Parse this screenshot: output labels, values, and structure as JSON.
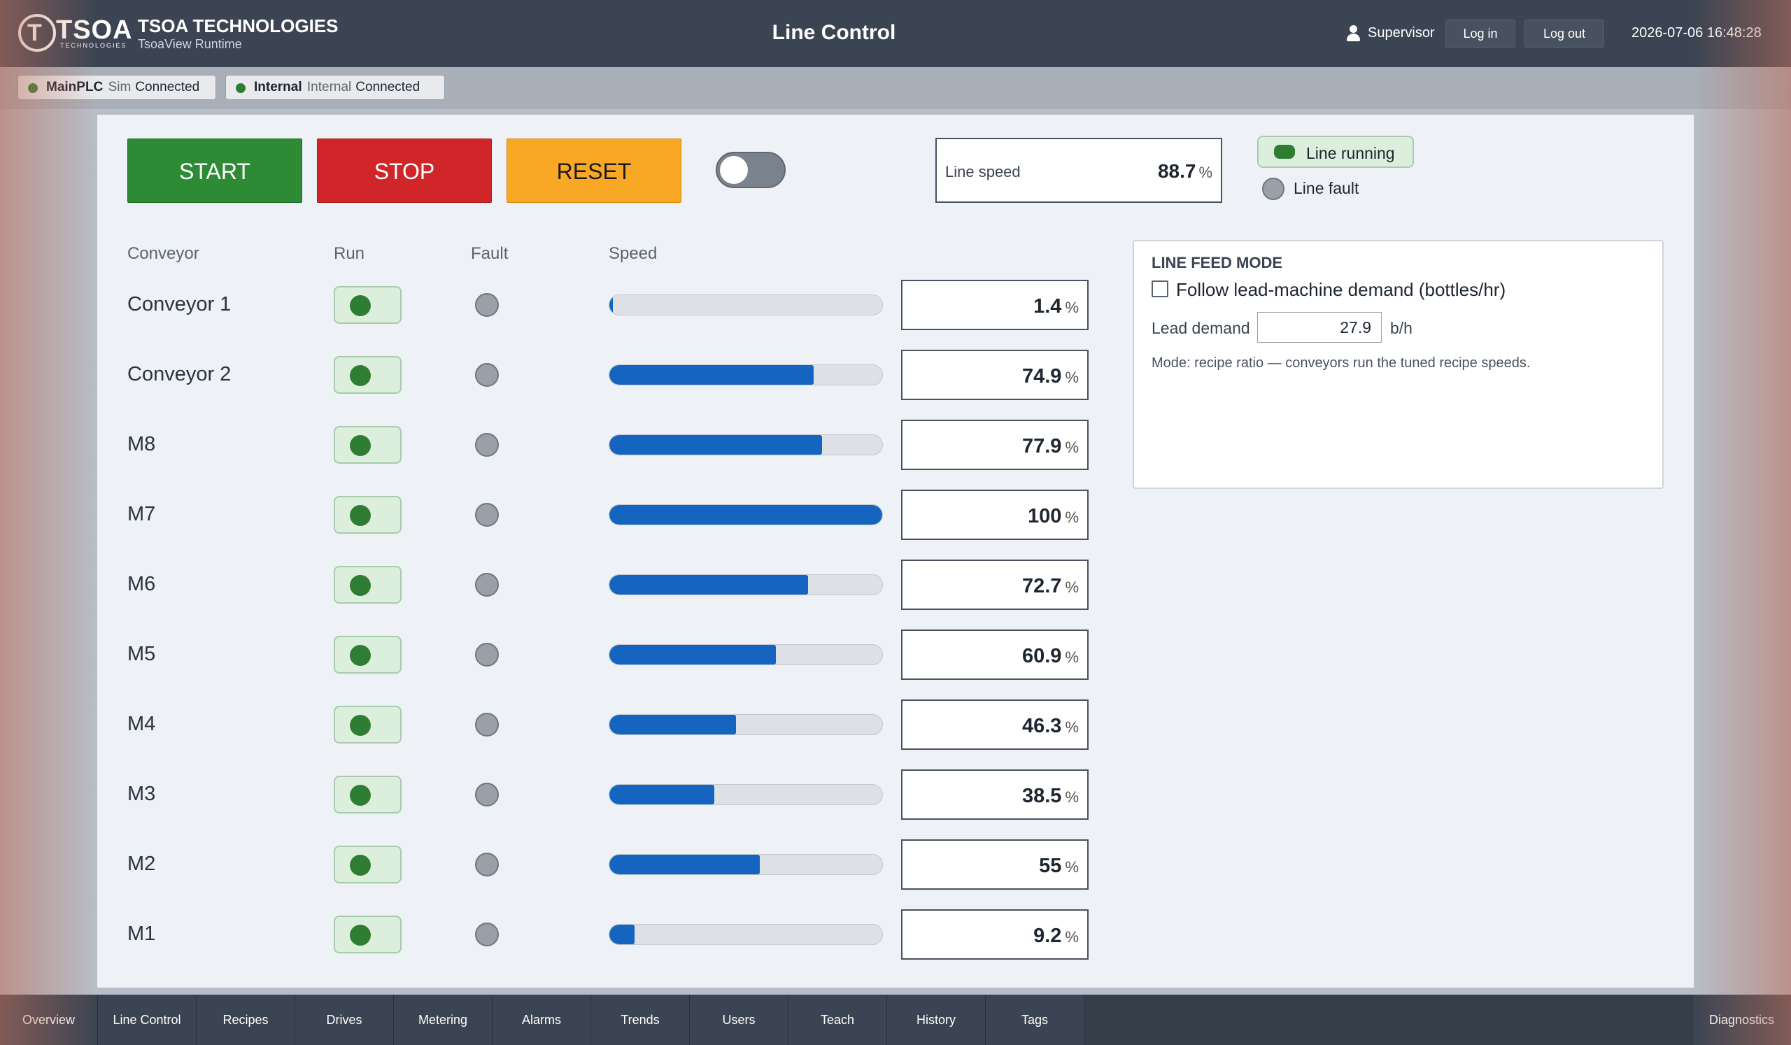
{
  "header": {
    "logo_letter": "T",
    "logo_word": "TSOA",
    "logo_sub": "TECHNOLOGIES",
    "brand_title": "TSOA TECHNOLOGIES",
    "brand_sub": "TsoaView Runtime",
    "page_title": "Line Control",
    "user_name": "Supervisor",
    "login_label": "Log in",
    "logout_label": "Log out",
    "datetime": "2026-07-06  16:48:28"
  },
  "connections": [
    {
      "name": "MainPLC",
      "type": "Sim",
      "status": "Connected",
      "color": "#2e7d32"
    },
    {
      "name": "Internal",
      "type": "Internal",
      "status": "Connected",
      "color": "#2e7d32"
    }
  ],
  "controls": {
    "start_label": "START",
    "stop_label": "STOP",
    "reset_label": "RESET",
    "toggle_on": false,
    "line_speed_label": "Line speed",
    "line_speed_value": "88.7",
    "line_speed_unit": "%",
    "line_running_label": "Line running",
    "line_fault_label": "Line fault"
  },
  "table": {
    "headers": {
      "conveyor": "Conveyor",
      "run": "Run",
      "fault": "Fault",
      "speed": "Speed"
    },
    "unit": "%",
    "rows": [
      {
        "name": "Conveyor 1",
        "run": true,
        "fault": false,
        "value": "1.4",
        "fraction": 0.014
      },
      {
        "name": "Conveyor 2",
        "run": true,
        "fault": false,
        "value": "74.9",
        "fraction": 0.749
      },
      {
        "name": "M8",
        "run": true,
        "fault": false,
        "value": "77.9",
        "fraction": 0.779
      },
      {
        "name": "M7",
        "run": true,
        "fault": false,
        "value": "100",
        "fraction": 1.0
      },
      {
        "name": "M6",
        "run": true,
        "fault": false,
        "value": "72.7",
        "fraction": 0.727
      },
      {
        "name": "M5",
        "run": true,
        "fault": false,
        "value": "60.9",
        "fraction": 0.609
      },
      {
        "name": "M4",
        "run": true,
        "fault": false,
        "value": "46.3",
        "fraction": 0.463
      },
      {
        "name": "M3",
        "run": true,
        "fault": false,
        "value": "38.5",
        "fraction": 0.385
      },
      {
        "name": "M2",
        "run": true,
        "fault": false,
        "value": "55",
        "fraction": 0.55
      },
      {
        "name": "M1",
        "run": true,
        "fault": false,
        "value": "9.2",
        "fraction": 0.092
      }
    ]
  },
  "feed_mode": {
    "title": "LINE FEED MODE",
    "follow_label": "Follow lead-machine demand (bottles/hr)",
    "follow_checked": false,
    "lead_label": "Lead demand",
    "lead_value": "27.9",
    "lead_unit": "b/h",
    "mode_text": "Mode: recipe ratio — conveyors run the tuned recipe speeds."
  },
  "nav": {
    "items": [
      "Overview",
      "Line Control",
      "Recipes",
      "Drives",
      "Metering",
      "Alarms",
      "Trends",
      "Users",
      "Teach",
      "History",
      "Tags"
    ],
    "right_item": "Diagnostics"
  },
  "colors": {
    "run_green": "#2e7d32",
    "bar_blue": "#1565c0",
    "start": "#2e8b35",
    "stop": "#d0262a",
    "reset": "#f9a825"
  }
}
